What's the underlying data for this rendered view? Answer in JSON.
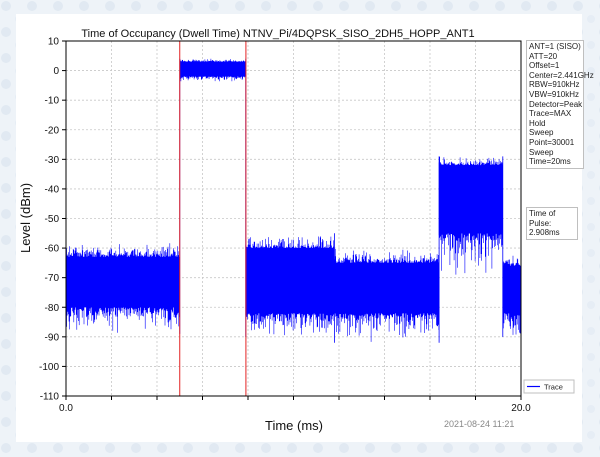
{
  "colors": {
    "trace": "#0000ff",
    "markers": "#e32222",
    "grid": "#c8c8c8",
    "background_pattern": "#dfe8f1"
  },
  "chart_data": {
    "type": "line",
    "title": "Time of Occupancy (Dwell Time) NTNV_Pi/4DQPSK_SISO_2DH5_HOPP_ANT1",
    "xlabel": "Time (ms)",
    "ylabel": "Level (dBm)",
    "xlim": [
      0.0,
      20.0
    ],
    "ylim": [
      -110,
      10
    ],
    "x_tick_labels": [
      "0.0",
      "20.0"
    ],
    "x_minor_ticks": [
      2,
      4,
      6,
      8,
      10,
      12,
      14,
      16,
      18
    ],
    "y_ticks": [
      10,
      0,
      -10,
      -20,
      -30,
      -40,
      -50,
      -60,
      -70,
      -80,
      -90,
      -100,
      -110
    ],
    "grid": true,
    "legend": {
      "position": "bottom-right",
      "entries": [
        "Trace"
      ]
    },
    "markers": [
      {
        "x": 5.0,
        "label": ""
      },
      {
        "x": 7.908,
        "label": ""
      }
    ],
    "series": [
      {
        "name": "Trace",
        "segments": [
          {
            "x_start": 0.0,
            "x_end": 5.0,
            "floor": -89,
            "ceiling": -58,
            "body_low": -80,
            "body_high": -63
          },
          {
            "x_start": 5.0,
            "x_end": 7.9,
            "floor": -4,
            "ceiling": 4,
            "body_low": -2,
            "body_high": 3
          },
          {
            "x_start": 7.9,
            "x_end": 11.8,
            "floor": -90,
            "ceiling": -55,
            "body_low": -82,
            "body_high": -60
          },
          {
            "x_start": 11.8,
            "x_end": 16.4,
            "floor": -92,
            "ceiling": -60,
            "body_low": -82,
            "body_high": -65
          },
          {
            "x_start": 16.4,
            "x_end": 19.2,
            "floor": -70,
            "ceiling": -29,
            "body_low": -55,
            "body_high": -32
          },
          {
            "x_start": 19.2,
            "x_end": 20.0,
            "floor": -90,
            "ceiling": -62,
            "body_low": -82,
            "body_high": -66
          }
        ]
      }
    ]
  },
  "settings_box": {
    "lines": [
      "ANT=1 (SISO)",
      "ATT=20",
      "Offset=1",
      "Center=2.441GHz",
      "RBW=910kHz",
      "VBW=910kHz",
      "Detector=Peak",
      "Trace=MAX Hold",
      "Sweep Point=30001",
      "Sweep Time=20ms"
    ]
  },
  "pulse_box": {
    "label": "Time of Pulse:",
    "value": "2.908ms"
  },
  "timestamp": "2021-08-24 11:21"
}
